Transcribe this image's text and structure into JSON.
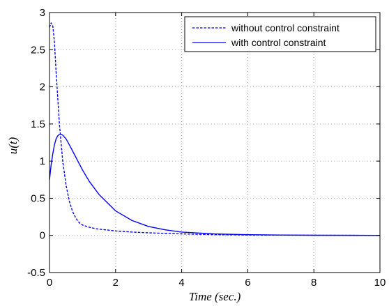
{
  "chart_data": {
    "type": "line",
    "xlabel": "Time (sec.)",
    "ylabel": "u(t)",
    "xlim": [
      0,
      10
    ],
    "ylim": [
      -0.5,
      3
    ],
    "xticks": [
      0,
      2,
      4,
      6,
      8,
      10
    ],
    "yticks": [
      -0.5,
      0,
      0.5,
      1,
      1.5,
      2,
      2.5,
      3
    ],
    "grid": true,
    "legend_position": "top-right",
    "series": [
      {
        "name": "without control constraint",
        "style": "dashed",
        "color": "#0000ff",
        "x": [
          0,
          0.05,
          0.1,
          0.15,
          0.2,
          0.3,
          0.4,
          0.5,
          0.6,
          0.7,
          0.8,
          0.9,
          1.0,
          1.2,
          1.4,
          1.6,
          1.8,
          2.0,
          2.5,
          3.0,
          4.0,
          5.0,
          6.0,
          8.0,
          10.0
        ],
        "y": [
          2.8,
          2.86,
          2.82,
          2.6,
          2.2,
          1.5,
          1.0,
          0.68,
          0.46,
          0.32,
          0.23,
          0.17,
          0.14,
          0.11,
          0.09,
          0.08,
          0.07,
          0.06,
          0.045,
          0.035,
          0.02,
          0.01,
          0.005,
          0.002,
          0.0
        ]
      },
      {
        "name": "with control constraint",
        "style": "solid",
        "color": "#0000ff",
        "x": [
          0,
          0.05,
          0.1,
          0.15,
          0.2,
          0.25,
          0.3,
          0.35,
          0.4,
          0.5,
          0.6,
          0.8,
          1.0,
          1.2,
          1.5,
          2.0,
          2.5,
          3.0,
          3.5,
          4.0,
          5.0,
          6.0,
          7.0,
          8.0,
          10.0
        ],
        "y": [
          0.75,
          0.95,
          1.1,
          1.22,
          1.3,
          1.34,
          1.36,
          1.36,
          1.35,
          1.3,
          1.22,
          1.05,
          0.88,
          0.73,
          0.55,
          0.33,
          0.2,
          0.12,
          0.075,
          0.045,
          0.02,
          0.01,
          0.005,
          0.002,
          0.0
        ]
      }
    ]
  }
}
